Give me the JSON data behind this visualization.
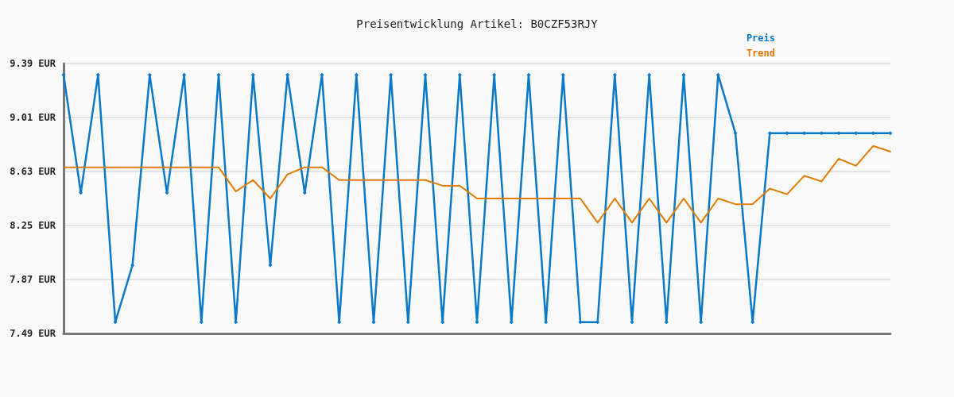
{
  "chart_data": {
    "type": "line",
    "title": "Preisentwicklung Artikel: B0CZF53RJY",
    "categories": [
      null,
      null,
      null,
      null,
      null,
      null,
      null,
      null,
      null,
      null,
      null,
      null,
      null,
      null,
      null,
      null,
      null,
      null,
      null,
      null,
      null,
      null,
      null,
      null,
      null,
      null,
      null,
      null,
      null,
      null,
      null,
      null,
      null,
      null,
      null,
      null,
      null,
      null,
      null,
      null,
      null,
      null,
      null,
      null,
      null,
      null,
      null,
      null,
      null
    ],
    "series": [
      {
        "name": "Preis",
        "color": "#0a79c8",
        "marker": "diamond",
        "values": [
          9.31,
          8.48,
          9.31,
          7.57,
          7.97,
          9.31,
          8.48,
          9.31,
          7.57,
          9.31,
          7.57,
          9.31,
          7.97,
          9.31,
          8.48,
          9.31,
          7.57,
          9.31,
          7.57,
          9.31,
          7.57,
          9.31,
          7.57,
          9.31,
          7.57,
          9.31,
          7.57,
          9.31,
          7.57,
          9.31,
          7.57,
          7.57,
          9.31,
          7.57,
          9.31,
          7.57,
          9.31,
          7.57,
          9.31,
          8.9,
          7.57,
          8.9,
          8.9,
          8.9,
          8.9,
          8.9,
          8.9,
          8.9,
          8.9
        ]
      },
      {
        "name": "Trend",
        "color": "#e07b00",
        "marker": "none",
        "values": [
          8.66,
          8.66,
          8.66,
          8.66,
          8.66,
          8.66,
          8.66,
          8.66,
          8.66,
          8.66,
          8.49,
          8.57,
          8.44,
          8.61,
          8.66,
          8.66,
          8.57,
          8.57,
          8.57,
          8.57,
          8.57,
          8.57,
          8.53,
          8.53,
          8.44,
          8.44,
          8.44,
          8.44,
          8.44,
          8.44,
          8.44,
          8.27,
          8.44,
          8.27,
          8.44,
          8.27,
          8.44,
          8.27,
          8.44,
          8.4,
          8.4,
          8.51,
          8.47,
          8.6,
          8.56,
          8.72,
          8.67,
          8.81,
          8.77
        ]
      }
    ],
    "ylim": [
      7.49,
      9.39
    ],
    "yticks": [
      {
        "value": 7.49,
        "label": "7.49 EUR"
      },
      {
        "value": 7.87,
        "label": "7.87 EUR"
      },
      {
        "value": 8.25,
        "label": "8.25 EUR"
      },
      {
        "value": 8.63,
        "label": "8.63 EUR"
      },
      {
        "value": 9.01,
        "label": "9.01 EUR"
      },
      {
        "value": 9.39,
        "label": "9.39 EUR"
      }
    ],
    "grid": "y",
    "legend": "top right",
    "line_style": "solid",
    "tick_labels": "y"
  }
}
